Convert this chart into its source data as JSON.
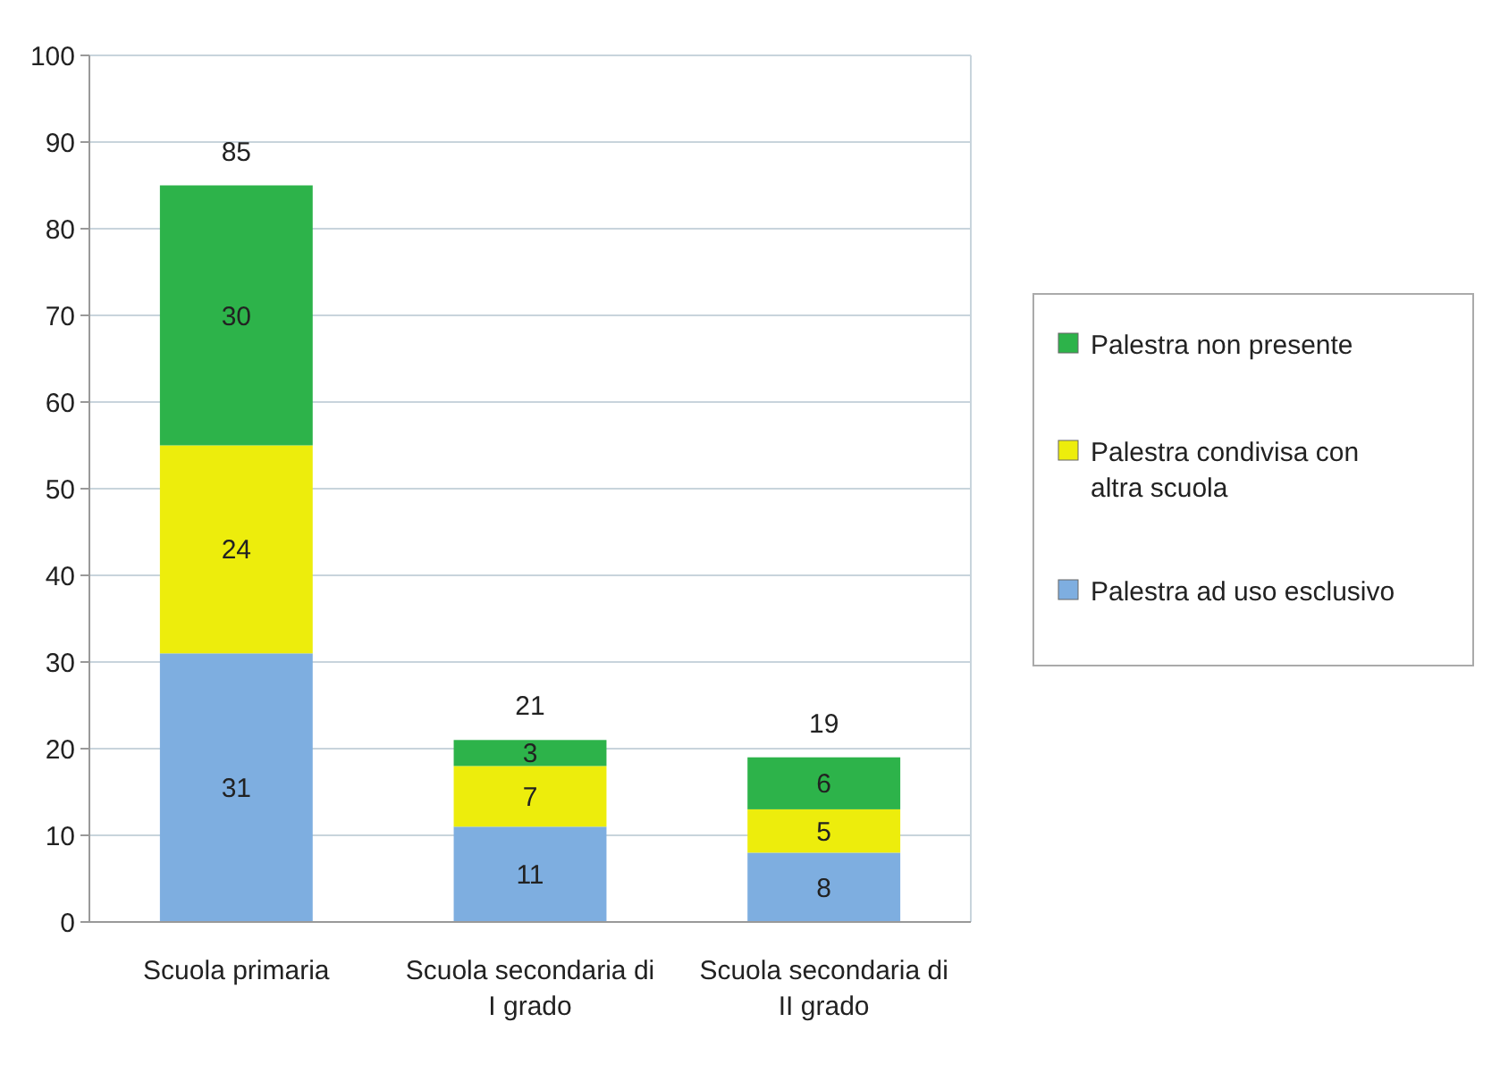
{
  "chart_data": {
    "type": "bar",
    "stacked": true,
    "categories": [
      "Scuola primaria",
      "Scuola secondaria di I grado",
      "Scuola secondaria di II grado"
    ],
    "series": [
      {
        "name": "Palestra ad uso esclusivo",
        "color": "#7eaee0",
        "values": [
          31,
          11,
          8
        ]
      },
      {
        "name": "Palestra condivisa con altra scuola",
        "color": "#eded0c",
        "values": [
          24,
          7,
          5
        ]
      },
      {
        "name": "Palestra non presente",
        "color": "#2db34a",
        "values": [
          30,
          3,
          6
        ]
      }
    ],
    "totals": [
      "85",
      "21",
      "19"
    ],
    "data_labels": true,
    "ylim": [
      0,
      100
    ],
    "yticks": [
      0,
      10,
      20,
      30,
      40,
      50,
      60,
      70,
      80,
      90,
      100
    ],
    "grid": "y",
    "legend": "right"
  }
}
